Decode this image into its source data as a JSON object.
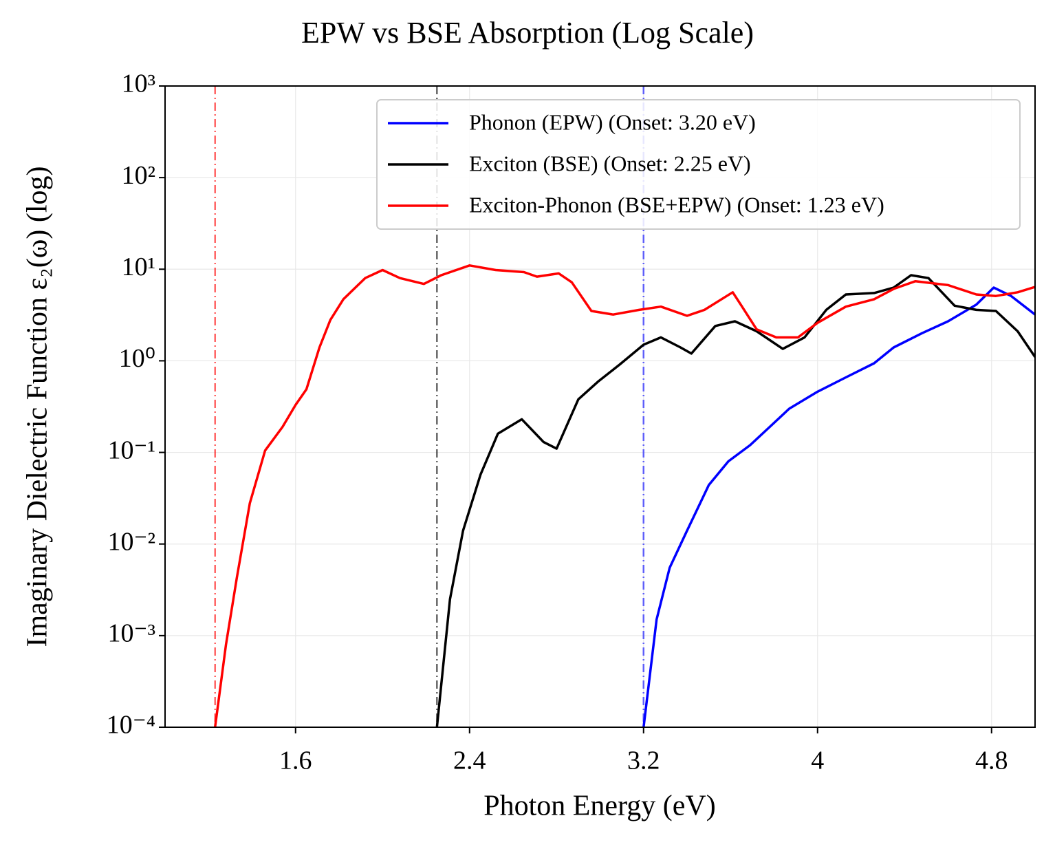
{
  "chart_data": {
    "type": "line",
    "title": "EPW vs BSE Absorption (Log Scale)",
    "x_label": "Photon Energy (eV)",
    "y_label": "Imaginary Dielectric Function ε₂(ω) (log)",
    "xlim": [
      1.0,
      5.0
    ],
    "xticks": [
      1.6,
      2.4,
      3.2,
      4.0,
      4.8
    ],
    "ylim": [
      0.0001,
      1000
    ],
    "yscale": "log",
    "yticks": [
      {
        "value": 0.0001,
        "label": "10⁻⁴"
      },
      {
        "value": 0.001,
        "label": "10⁻³"
      },
      {
        "value": 0.01,
        "label": "10⁻²"
      },
      {
        "value": 0.1,
        "label": "10⁻¹"
      },
      {
        "value": 1,
        "label": "10⁰"
      },
      {
        "value": 10,
        "label": "10¹"
      },
      {
        "value": 100,
        "label": "10²"
      },
      {
        "value": 1000,
        "label": "10³"
      }
    ],
    "grid": true,
    "legend": "upper right",
    "series": [
      {
        "name": "Phonon (EPW) (Onset: 3.20 eV)",
        "color": "#0000ff",
        "onset": 3.2,
        "x": [
          3.2,
          3.26,
          3.32,
          3.4,
          3.5,
          3.59,
          3.69,
          3.78,
          3.87,
          4.0,
          4.13,
          4.26,
          4.35,
          4.48,
          4.6,
          4.73,
          4.81,
          4.89,
          5.0
        ],
        "values": [
          0.0001,
          0.0015,
          0.0055,
          0.014,
          0.044,
          0.08,
          0.12,
          0.19,
          0.3,
          0.46,
          0.66,
          0.94,
          1.4,
          2.0,
          2.7,
          4.1,
          6.3,
          5.1,
          3.2
        ]
      },
      {
        "name": "Exciton (BSE) (Onset: 2.25 eV)",
        "color": "#000000",
        "onset": 2.25,
        "x": [
          2.25,
          2.31,
          2.37,
          2.45,
          2.53,
          2.64,
          2.74,
          2.8,
          2.9,
          2.99,
          3.09,
          3.2,
          3.28,
          3.37,
          3.42,
          3.53,
          3.62,
          3.72,
          3.84,
          3.94,
          4.04,
          4.13,
          4.26,
          4.35,
          4.43,
          4.51,
          4.63,
          4.73,
          4.82,
          4.92,
          5.0
        ],
        "values": [
          0.0001,
          0.0025,
          0.014,
          0.057,
          0.16,
          0.23,
          0.13,
          0.11,
          0.38,
          0.59,
          0.91,
          1.5,
          1.8,
          1.4,
          1.2,
          2.4,
          2.7,
          2.1,
          1.35,
          1.8,
          3.6,
          5.3,
          5.5,
          6.3,
          8.6,
          8,
          4,
          3.6,
          3.5,
          2.1,
          1.1
        ]
      },
      {
        "name": "Exciton-Phonon (BSE+EPW) (Onset: 1.23 eV)",
        "color": "#ff0000",
        "onset": 1.23,
        "x": [
          1.23,
          1.28,
          1.33,
          1.39,
          1.46,
          1.54,
          1.6,
          1.65,
          1.71,
          1.76,
          1.82,
          1.92,
          2.0,
          2.08,
          2.19,
          2.27,
          2.4,
          2.52,
          2.65,
          2.71,
          2.81,
          2.87,
          2.96,
          3.06,
          3.18,
          3.28,
          3.4,
          3.48,
          3.61,
          3.65,
          3.72,
          3.81,
          3.91,
          4.0,
          4.13,
          4.26,
          4.35,
          4.45,
          4.6,
          4.73,
          4.82,
          4.92,
          5.0
        ],
        "values": [
          0.0001,
          0.0008,
          0.0043,
          0.028,
          0.105,
          0.19,
          0.33,
          0.49,
          1.4,
          2.8,
          4.7,
          8,
          9.8,
          8,
          6.9,
          8.6,
          11,
          9.8,
          9.3,
          8.3,
          9,
          7.2,
          3.5,
          3.2,
          3.6,
          3.9,
          3.1,
          3.6,
          5.6,
          4.0,
          2.2,
          1.8,
          1.8,
          2.6,
          3.9,
          4.7,
          6.1,
          7.4,
          6.7,
          5.3,
          5.1,
          5.6,
          6.4
        ]
      }
    ]
  }
}
